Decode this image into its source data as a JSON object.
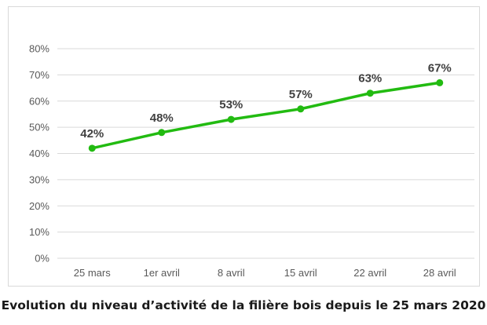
{
  "caption": "Evolution du niveau d’activité de la filière bois depuis le 25 mars 2020",
  "chart_data": {
    "type": "line",
    "categories": [
      "25 mars",
      "1er avril",
      "8 avril",
      "15 avril",
      "22 avril",
      "28 avril"
    ],
    "series": [
      {
        "values": [
          42,
          48,
          53,
          57,
          63,
          67
        ],
        "data_labels": [
          "42%",
          "48%",
          "53%",
          "57%",
          "63%",
          "67%"
        ],
        "color": "#22bb11"
      }
    ],
    "y_ticks": [
      0,
      10,
      20,
      30,
      40,
      50,
      60,
      70,
      80
    ],
    "y_tick_labels": [
      "0%",
      "10%",
      "20%",
      "30%",
      "40%",
      "50%",
      "60%",
      "70%",
      "80%"
    ],
    "ylim": [
      0,
      80
    ],
    "grid": true,
    "legend": "none",
    "gridline_color": "#d9d9d9"
  }
}
